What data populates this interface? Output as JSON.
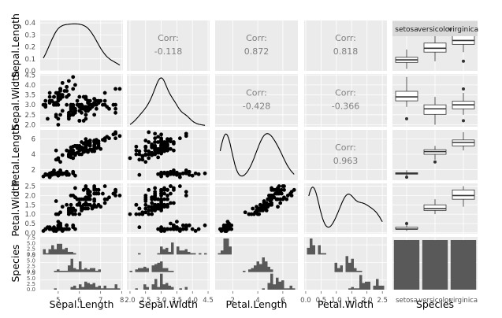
{
  "chart_data": {
    "type": "scatter",
    "title": "",
    "variables": [
      "Sepal.Length",
      "Sepal.Width",
      "Petal.Length",
      "Petal.Width",
      "Species"
    ],
    "species": [
      "setosa",
      "versicolor",
      "virginica"
    ],
    "species_strip_labels": [
      "setosa",
      "versicolor",
      "virginica"
    ],
    "correlations": [
      {
        "row": "Sepal.Width",
        "col": "Sepal.Length",
        "label": "Corr:",
        "value": "-0.118"
      },
      {
        "row": "Petal.Length",
        "col": "Sepal.Length",
        "label": "Corr:",
        "value": "0.872"
      },
      {
        "row": "Petal.Width",
        "col": "Sepal.Length",
        "label": "Corr:",
        "value": "0.818"
      },
      {
        "row": "Petal.Length",
        "col": "Sepal.Width",
        "label": "Corr:",
        "value": "-0.428"
      },
      {
        "row": "Petal.Width",
        "col": "Sepal.Width",
        "label": "Corr:",
        "value": "-0.366"
      },
      {
        "row": "Petal.Width",
        "col": "Petal.Length",
        "label": "Corr:",
        "value": "0.963"
      }
    ],
    "axes": {
      "Sepal.Length": {
        "x_ticks": [
          "5",
          "6",
          "7",
          "8"
        ],
        "y_ticks": [
          "0.0",
          "0.1",
          "0.2",
          "0.3",
          "0.4"
        ],
        "x_range": [
          4.3,
          7.9
        ],
        "density_range": [
          0,
          0.42
        ]
      },
      "Sepal.Width": {
        "x_ticks": [
          "2.0",
          "2.5",
          "3.0",
          "3.5",
          "4.0",
          "4.5"
        ],
        "y_ticks": [
          "2.0",
          "2.5",
          "3.0",
          "3.5",
          "4.0",
          "4.5"
        ],
        "range": [
          2.0,
          4.4
        ]
      },
      "Petal.Length": {
        "x_ticks": [
          "2",
          "4",
          "6"
        ],
        "y_ticks": [
          "2",
          "4",
          "6"
        ],
        "range": [
          1.0,
          6.9
        ]
      },
      "Petal.Width": {
        "x_ticks": [
          "0.0",
          "0.5",
          "1.0",
          "1.5",
          "2.0",
          "2.5"
        ],
        "y_ticks": [
          "0.0",
          "0.5",
          "1.0",
          "1.5",
          "2.0",
          "2.5"
        ],
        "range": [
          0.1,
          2.5
        ]
      },
      "Species": {
        "x_ticks": [
          "setosa",
          "versicolor",
          "virginica"
        ],
        "y_ticks": [
          "0.0",
          "2.5",
          "5.0",
          "7.5"
        ]
      }
    },
    "species_counts": [
      50,
      50,
      50
    ],
    "box_stats": {
      "Sepal.Length": [
        [
          4.3,
          4.8,
          5.0,
          5.2,
          5.8
        ],
        [
          4.9,
          5.6,
          5.9,
          6.3,
          7.0
        ],
        [
          5.6,
          6.2,
          6.5,
          6.9,
          7.9
        ]
      ],
      "Sepal.Width": [
        [
          2.9,
          3.2,
          3.4,
          3.68,
          4.4
        ],
        [
          2.0,
          2.52,
          2.8,
          3.0,
          3.4
        ],
        [
          2.5,
          2.8,
          3.0,
          3.18,
          3.6
        ]
      ],
      "Petal.Length": [
        [
          1.1,
          1.4,
          1.5,
          1.58,
          1.9
        ],
        [
          3.3,
          4.0,
          4.35,
          4.6,
          5.1
        ],
        [
          4.5,
          5.1,
          5.55,
          5.88,
          6.9
        ]
      ],
      "Petal.Width": [
        [
          0.1,
          0.2,
          0.2,
          0.3,
          0.6
        ],
        [
          1.0,
          1.2,
          1.3,
          1.5,
          1.8
        ],
        [
          1.4,
          1.8,
          2.0,
          2.3,
          2.5
        ]
      ]
    },
    "box_outliers": {
      "Sepal.Length": [
        [],
        [],
        [
          4.9
        ]
      ],
      "Sepal.Width": [
        [
          2.3
        ],
        [],
        [
          2.2,
          3.8
        ]
      ],
      "Petal.Length": [
        [
          1.0
        ],
        [
          3.0
        ],
        []
      ],
      "Petal.Width": [
        [
          0.5
        ],
        [],
        []
      ]
    },
    "points": {
      "Sepal.Length": [
        5.1,
        4.9,
        4.7,
        4.6,
        5.0,
        5.4,
        4.6,
        5.0,
        4.4,
        4.9,
        5.4,
        4.8,
        4.8,
        4.3,
        5.8,
        5.7,
        5.4,
        5.1,
        5.7,
        5.1,
        5.4,
        5.1,
        4.6,
        5.1,
        4.8,
        5.0,
        5.0,
        5.2,
        5.2,
        4.7,
        4.8,
        5.4,
        5.2,
        5.5,
        4.9,
        5.0,
        5.5,
        4.9,
        4.4,
        5.1,
        5.0,
        4.5,
        4.4,
        5.0,
        5.1,
        4.8,
        5.1,
        4.6,
        5.3,
        5.0,
        7.0,
        6.4,
        6.9,
        5.5,
        6.5,
        5.7,
        6.3,
        4.9,
        6.6,
        5.2,
        5.0,
        5.9,
        6.0,
        6.1,
        5.6,
        6.7,
        5.6,
        5.8,
        6.2,
        5.6,
        5.9,
        6.1,
        6.3,
        6.1,
        6.4,
        6.6,
        6.8,
        6.7,
        6.0,
        5.7,
        5.5,
        5.5,
        5.8,
        6.0,
        5.4,
        6.0,
        6.7,
        6.3,
        5.6,
        5.5,
        5.5,
        6.1,
        5.8,
        5.0,
        5.6,
        5.7,
        5.7,
        6.2,
        5.1,
        5.7,
        6.3,
        5.8,
        7.1,
        6.3,
        6.5,
        7.6,
        4.9,
        7.3,
        6.7,
        7.2,
        6.5,
        6.4,
        6.8,
        5.7,
        5.8,
        6.4,
        6.5,
        7.7,
        7.7,
        6.0,
        6.9,
        5.6,
        7.7,
        6.3,
        6.7,
        7.2,
        6.2,
        6.1,
        6.4,
        7.2,
        7.4,
        7.9,
        6.4,
        6.3,
        6.1,
        7.7,
        6.3,
        6.4,
        6.0,
        6.9,
        6.7,
        6.9,
        5.8,
        6.8,
        6.7,
        6.7,
        6.3,
        6.5,
        6.2,
        5.9
      ],
      "Sepal.Width": [
        3.5,
        3.0,
        3.2,
        3.1,
        3.6,
        3.9,
        3.4,
        3.4,
        2.9,
        3.1,
        3.7,
        3.4,
        3.0,
        3.0,
        4.0,
        4.4,
        3.9,
        3.5,
        3.8,
        3.8,
        3.4,
        3.7,
        3.6,
        3.3,
        3.4,
        3.0,
        3.4,
        3.5,
        3.4,
        3.2,
        3.1,
        3.4,
        4.1,
        4.2,
        3.1,
        3.2,
        3.5,
        3.6,
        3.0,
        3.4,
        3.5,
        2.3,
        3.2,
        3.5,
        3.8,
        3.0,
        3.8,
        3.2,
        3.7,
        3.3,
        3.2,
        3.2,
        3.1,
        2.3,
        2.8,
        2.8,
        3.3,
        2.4,
        2.9,
        2.7,
        2.0,
        3.0,
        2.2,
        2.9,
        2.9,
        3.1,
        3.0,
        2.7,
        2.2,
        2.5,
        3.2,
        2.8,
        2.5,
        2.8,
        2.9,
        3.0,
        2.8,
        3.0,
        2.9,
        2.6,
        2.4,
        2.4,
        2.7,
        2.7,
        3.0,
        3.4,
        3.1,
        2.3,
        3.0,
        2.5,
        2.6,
        3.0,
        2.6,
        2.3,
        2.7,
        3.0,
        2.9,
        2.9,
        2.5,
        2.8,
        3.3,
        2.7,
        3.0,
        2.9,
        3.0,
        3.0,
        2.5,
        2.9,
        2.5,
        3.6,
        3.2,
        2.7,
        3.0,
        2.5,
        2.8,
        3.2,
        3.0,
        3.8,
        2.6,
        2.2,
        3.2,
        2.8,
        2.8,
        2.7,
        3.3,
        3.2,
        2.8,
        3.0,
        2.8,
        3.0,
        2.8,
        3.8,
        2.8,
        2.8,
        2.6,
        3.0,
        3.4,
        3.1,
        3.0,
        3.1,
        3.1,
        3.1,
        2.7,
        3.2,
        3.3,
        3.0,
        2.5,
        3.0,
        3.4,
        3.0
      ],
      "Petal.Length": [
        1.4,
        1.4,
        1.3,
        1.5,
        1.4,
        1.7,
        1.4,
        1.5,
        1.4,
        1.5,
        1.5,
        1.6,
        1.4,
        1.1,
        1.2,
        1.5,
        1.3,
        1.4,
        1.7,
        1.5,
        1.7,
        1.5,
        1.0,
        1.7,
        1.9,
        1.6,
        1.6,
        1.5,
        1.4,
        1.6,
        1.6,
        1.5,
        1.5,
        1.4,
        1.5,
        1.2,
        1.3,
        1.4,
        1.3,
        1.5,
        1.3,
        1.3,
        1.3,
        1.6,
        1.9,
        1.4,
        1.6,
        1.4,
        1.5,
        1.4,
        4.7,
        4.5,
        4.9,
        4.0,
        4.6,
        4.5,
        4.7,
        3.3,
        4.6,
        3.9,
        3.5,
        4.2,
        4.0,
        4.7,
        3.6,
        4.4,
        4.5,
        4.1,
        4.5,
        3.9,
        4.8,
        4.0,
        4.9,
        4.7,
        4.3,
        4.4,
        4.8,
        5.0,
        4.5,
        3.5,
        3.8,
        3.7,
        3.9,
        5.1,
        4.5,
        4.5,
        4.7,
        4.4,
        4.1,
        4.0,
        4.4,
        4.6,
        4.0,
        3.3,
        4.2,
        4.2,
        4.2,
        4.3,
        3.0,
        4.1,
        6.0,
        5.1,
        5.9,
        5.6,
        5.8,
        6.6,
        4.5,
        6.3,
        5.8,
        6.1,
        5.1,
        5.3,
        5.5,
        5.0,
        5.1,
        5.3,
        5.5,
        6.7,
        6.9,
        5.0,
        5.7,
        4.9,
        6.7,
        4.9,
        5.7,
        6.0,
        4.8,
        4.9,
        5.6,
        5.8,
        6.1,
        6.4,
        5.6,
        5.1,
        5.6,
        6.1,
        5.6,
        5.5,
        4.8,
        5.4,
        5.6,
        5.1,
        5.1,
        5.9,
        5.7,
        5.2,
        5.0,
        5.2,
        5.4,
        5.1
      ],
      "Petal.Width": [
        0.2,
        0.2,
        0.2,
        0.2,
        0.2,
        0.4,
        0.3,
        0.2,
        0.2,
        0.1,
        0.2,
        0.2,
        0.1,
        0.1,
        0.2,
        0.4,
        0.4,
        0.3,
        0.3,
        0.3,
        0.2,
        0.4,
        0.2,
        0.5,
        0.2,
        0.2,
        0.4,
        0.2,
        0.2,
        0.2,
        0.2,
        0.4,
        0.1,
        0.2,
        0.2,
        0.2,
        0.2,
        0.1,
        0.2,
        0.2,
        0.3,
        0.3,
        0.2,
        0.6,
        0.4,
        0.3,
        0.2,
        0.2,
        0.2,
        0.2,
        1.4,
        1.5,
        1.5,
        1.3,
        1.5,
        1.3,
        1.6,
        1.0,
        1.3,
        1.4,
        1.0,
        1.5,
        1.0,
        1.4,
        1.3,
        1.4,
        1.5,
        1.0,
        1.5,
        1.1,
        1.8,
        1.3,
        1.5,
        1.2,
        1.3,
        1.4,
        1.4,
        1.7,
        1.5,
        1.0,
        1.1,
        1.0,
        1.2,
        1.6,
        1.5,
        1.6,
        1.5,
        1.3,
        1.3,
        1.3,
        1.2,
        1.4,
        1.2,
        1.0,
        1.3,
        1.2,
        1.3,
        1.3,
        1.1,
        1.3,
        2.5,
        1.9,
        2.1,
        1.8,
        2.2,
        2.1,
        1.7,
        1.8,
        1.8,
        2.5,
        2.0,
        1.9,
        2.1,
        2.0,
        2.4,
        2.3,
        1.8,
        2.2,
        2.3,
        1.5,
        2.3,
        2.0,
        2.0,
        1.8,
        2.1,
        1.8,
        1.8,
        1.8,
        2.1,
        1.6,
        1.9,
        2.0,
        2.2,
        1.5,
        1.4,
        2.3,
        2.4,
        1.8,
        1.8,
        2.1,
        2.4,
        2.3,
        1.9,
        2.3,
        2.5,
        2.3,
        1.9,
        2.0,
        2.3,
        1.8
      ]
    }
  }
}
